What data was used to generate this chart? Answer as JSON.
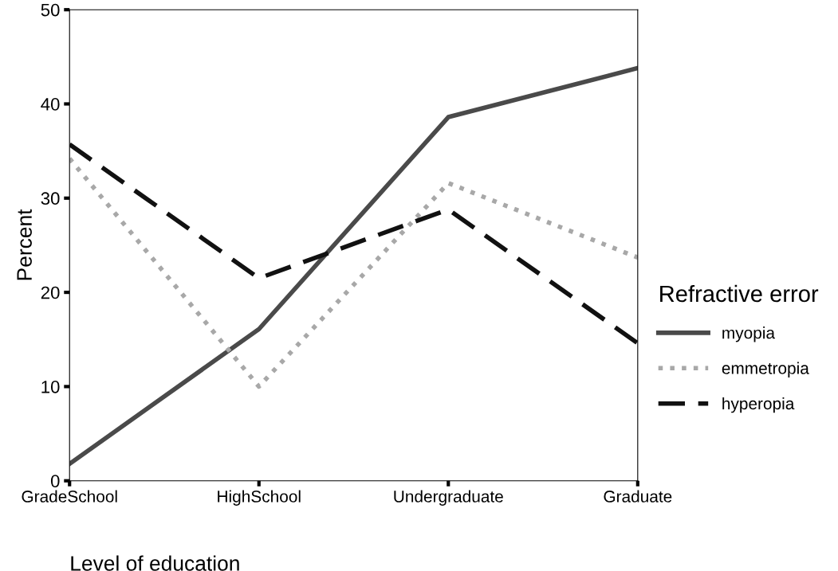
{
  "chart_data": {
    "type": "line",
    "xlabel": "Level of education",
    "ylabel": "Percent",
    "legend_title": "Refractive error",
    "legend": "right",
    "categories": [
      "GradeSchool",
      "HighSchool",
      "Undergraduate",
      "Graduate"
    ],
    "ylim": [
      0,
      50
    ],
    "yticks": [
      0,
      10,
      20,
      30,
      40,
      50
    ],
    "grid": false,
    "marker": "none",
    "series": [
      {
        "name": "myopia",
        "color": "#4a4a4a",
        "line_style": "solid",
        "values": [
          1.8,
          16.1,
          38.6,
          43.8
        ]
      },
      {
        "name": "emmetropia",
        "color": "#a8a8a8",
        "line_style": "dotted",
        "values": [
          34.2,
          10.0,
          31.6,
          23.7
        ]
      },
      {
        "name": "hyperopia",
        "color": "#111111",
        "line_style": "dashed",
        "values": [
          35.7,
          21.5,
          28.8,
          14.6
        ]
      }
    ]
  }
}
